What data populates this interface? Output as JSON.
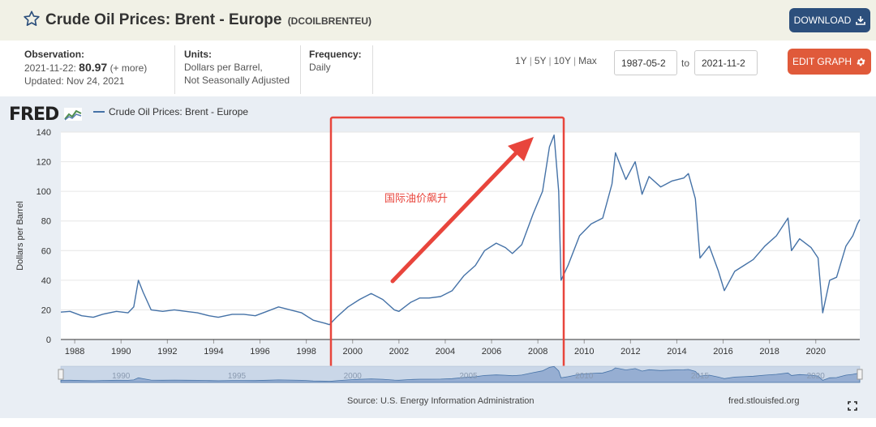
{
  "header": {
    "title": "Crude Oil Prices: Brent - Europe",
    "series_id": "(DCOILBRENTEU)",
    "download_label": "DOWNLOAD"
  },
  "info": {
    "observation_label": "Observation:",
    "observation_date": "2021-11-22:",
    "observation_value": "80.97",
    "observation_more": "(+ more)",
    "updated": "Updated: Nov 24, 2021",
    "units_label": "Units:",
    "units_line1": "Dollars per Barrel,",
    "units_line2": "Not Seasonally Adjusted",
    "frequency_label": "Frequency:",
    "frequency_value": "Daily"
  },
  "controls": {
    "range_1y": "1Y",
    "range_5y": "5Y",
    "range_10y": "10Y",
    "range_max": "Max",
    "start_date": "1987-05-2",
    "to_label": "to",
    "end_date": "2021-11-2",
    "edit_graph_label": "EDIT GRAPH"
  },
  "graph": {
    "logo": "FRED",
    "source": "Source: U.S. Energy Information Administration",
    "url": "fred.stlouisfed.org",
    "annotation_text": "国际油价飙升"
  },
  "colors": {
    "series": "#4572a7",
    "annotation": "#e8453c",
    "download_button": "#2c4f7c",
    "edit_button": "#e05a3a"
  },
  "chart_data": {
    "type": "line",
    "ylabel": "Dollars per Barrel",
    "ylim": [
      0,
      140
    ],
    "y_ticks": [
      0,
      20,
      40,
      60,
      80,
      100,
      120,
      140
    ],
    "xlim": [
      1987.4,
      2021.9
    ],
    "x_ticks": [
      "1988",
      "1990",
      "1992",
      "1994",
      "1996",
      "1998",
      "2000",
      "2002",
      "2004",
      "2006",
      "2008",
      "2010",
      "2012",
      "2014",
      "2016",
      "2018",
      "2020"
    ],
    "navigator_labels": [
      "1990",
      "1995",
      "2000",
      "2005",
      "2010",
      "2015",
      "2020"
    ],
    "series": [
      {
        "name": "Crude Oil Prices: Brent - Europe",
        "x": [
          1987.4,
          1987.8,
          1988.3,
          1988.8,
          1989.2,
          1989.8,
          1990.3,
          1990.55,
          1990.75,
          1990.95,
          1991.3,
          1991.8,
          1992.3,
          1992.8,
          1993.3,
          1993.8,
          1994.2,
          1994.8,
          1995.3,
          1995.8,
          1996.3,
          1996.8,
          1997.3,
          1997.8,
          1998.3,
          1998.8,
          1999.0,
          1999.3,
          1999.8,
          2000.3,
          2000.8,
          2001.3,
          2001.8,
          2002.0,
          2002.5,
          2002.9,
          2003.3,
          2003.8,
          2004.3,
          2004.8,
          2005.3,
          2005.7,
          2006.2,
          2006.6,
          2006.9,
          2007.3,
          2007.8,
          2008.2,
          2008.5,
          2008.7,
          2008.9,
          2009.0,
          2009.3,
          2009.8,
          2010.3,
          2010.8,
          2011.2,
          2011.35,
          2011.8,
          2012.2,
          2012.5,
          2012.8,
          2013.3,
          2013.8,
          2014.3,
          2014.5,
          2014.8,
          2015.0,
          2015.4,
          2015.8,
          2016.05,
          2016.5,
          2016.9,
          2017.3,
          2017.8,
          2018.3,
          2018.8,
          2018.95,
          2019.3,
          2019.8,
          2020.1,
          2020.3,
          2020.6,
          2020.9,
          2021.3,
          2021.6,
          2021.8,
          2021.9
        ],
        "values": [
          18.5,
          19,
          16,
          15,
          17,
          19,
          18,
          22,
          40,
          32,
          20,
          19,
          20,
          19,
          18,
          16,
          15,
          17,
          17,
          16,
          19,
          22,
          20,
          18,
          13,
          11,
          10,
          15,
          22,
          27,
          31,
          27,
          20,
          19,
          25,
          28,
          28,
          29,
          33,
          43,
          50,
          60,
          65,
          62,
          58,
          64,
          85,
          100,
          130,
          138,
          100,
          40,
          50,
          70,
          78,
          82,
          105,
          126,
          108,
          120,
          98,
          110,
          103,
          107,
          109,
          112,
          95,
          55,
          63,
          46,
          33,
          46,
          50,
          54,
          63,
          70,
          82,
          60,
          68,
          62,
          55,
          18,
          40,
          42,
          63,
          70,
          78,
          81
        ]
      }
    ]
  }
}
